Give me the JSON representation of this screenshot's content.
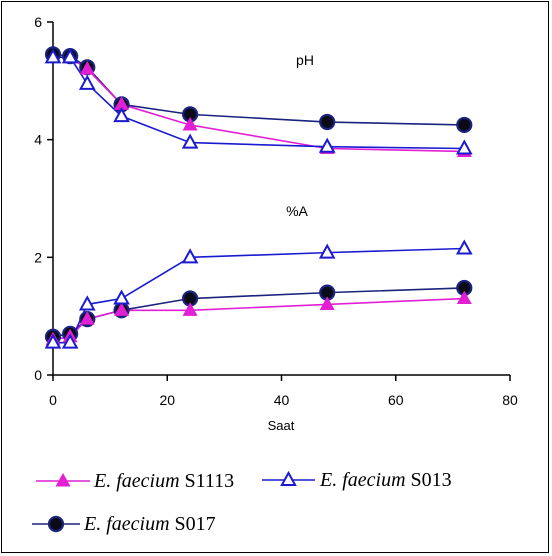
{
  "chart_data": {
    "type": "line",
    "title": "",
    "xlabel": "Saat",
    "ylabel": "",
    "xlim": [
      0,
      80
    ],
    "ylim": [
      0,
      6
    ],
    "x_ticks": [
      0,
      20,
      40,
      60,
      80
    ],
    "y_ticks": [
      0,
      2,
      4,
      6
    ],
    "grid": false,
    "legend_position": "bottom",
    "annotations": [
      {
        "text": "pH"
      },
      {
        "text": "%A"
      }
    ],
    "x": [
      0,
      3,
      6,
      12,
      24,
      48,
      72
    ],
    "series": [
      {
        "name_italic": "E. faecium",
        "name_rest": " S1113",
        "color": "#e21fd4",
        "marker": "filled-triangle",
        "groups": {
          "pH": [
            5.4,
            5.4,
            5.2,
            4.6,
            4.25,
            3.85,
            3.8
          ],
          "%A": [
            0.6,
            0.65,
            0.95,
            1.1,
            1.1,
            1.2,
            1.3
          ]
        }
      },
      {
        "name_italic": "E. faecium",
        "name_rest": " S013",
        "color": "#1a1ad1",
        "marker": "open-triangle",
        "groups": {
          "pH": [
            5.4,
            5.4,
            4.95,
            4.4,
            3.95,
            3.88,
            3.85
          ],
          "%A": [
            0.55,
            0.55,
            1.2,
            1.3,
            2.0,
            2.08,
            2.15
          ]
        }
      },
      {
        "name_italic": "E. faecium",
        "name_rest": " S017",
        "color": "#1a237e",
        "marker": "filled-circle",
        "groups": {
          "pH": [
            5.45,
            5.42,
            5.23,
            4.6,
            4.43,
            4.3,
            4.25
          ],
          "%A": [
            0.65,
            0.7,
            0.95,
            1.1,
            1.3,
            1.4,
            1.48
          ]
        }
      }
    ]
  }
}
